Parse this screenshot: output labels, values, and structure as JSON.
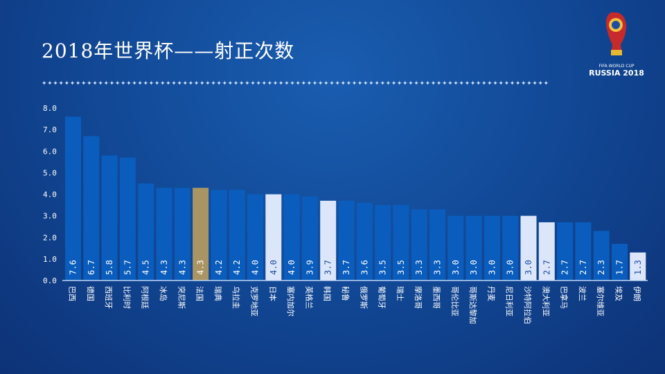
{
  "header": {
    "title": "2018年世界杯——射正次数",
    "separator": "✦✦✦✦✦✦✦✦✦✦✦✦✦✦✦✦✦✦✦✦✦✦✦✦✦✦✦✦✦✦✦✦✦✦✦✦✦✦✦✦✦✦✦✦✦✦✦✦✦✦✦✦✦✦✦✦✦✦✦✦✦✦✦✦✦✦✦✦✦✦✦✦✦✦✦✦✦✦✦✦✦✦✦✦✦✦✦✦✦✦"
  },
  "logo": {
    "line1": "FIFA WORLD CUP",
    "line2": "RUSSIA 2018"
  },
  "chart_data": {
    "type": "bar",
    "title": "2018年世界杯——射正次数",
    "xlabel": "",
    "ylabel": "",
    "ylim": [
      0,
      8
    ],
    "yticks": [
      "0.0",
      "1.0",
      "2.0",
      "3.0",
      "4.0",
      "5.0",
      "6.0",
      "7.0",
      "8.0"
    ],
    "categories": [
      "巴西",
      "德国",
      "西班牙",
      "比利时",
      "阿根廷",
      "冰岛",
      "突尼斯",
      "法国",
      "瑞典",
      "乌拉圭",
      "克罗地亚",
      "日本",
      "塞内加尔",
      "英格兰",
      "韩国",
      "秘鲁",
      "俄罗斯",
      "葡萄牙",
      "瑞士",
      "摩洛哥",
      "墨西哥",
      "哥伦比亚",
      "哥斯达黎加",
      "丹麦",
      "尼日利亚",
      "沙特阿拉伯",
      "澳大利亚",
      "巴拿马",
      "波兰",
      "塞尔维亚",
      "埃及",
      "伊朗"
    ],
    "values": [
      7.6,
      6.7,
      5.8,
      5.7,
      4.5,
      4.3,
      4.3,
      4.3,
      4.2,
      4.2,
      4.0,
      4.0,
      4.0,
      3.9,
      3.7,
      3.7,
      3.6,
      3.5,
      3.5,
      3.3,
      3.3,
      3.0,
      3.0,
      3.0,
      3.0,
      3.0,
      2.7,
      2.7,
      2.7,
      2.3,
      1.7,
      1.3
    ],
    "highlight": {
      "法国": "#a89563",
      "日本": "#dce6fb",
      "韩国": "#dce6fb",
      "沙特阿拉伯": "#dce6fb",
      "澳大利亚": "#dce6fb",
      "伊朗": "#dce6fb"
    },
    "bar_color": "#0a5dbd"
  }
}
